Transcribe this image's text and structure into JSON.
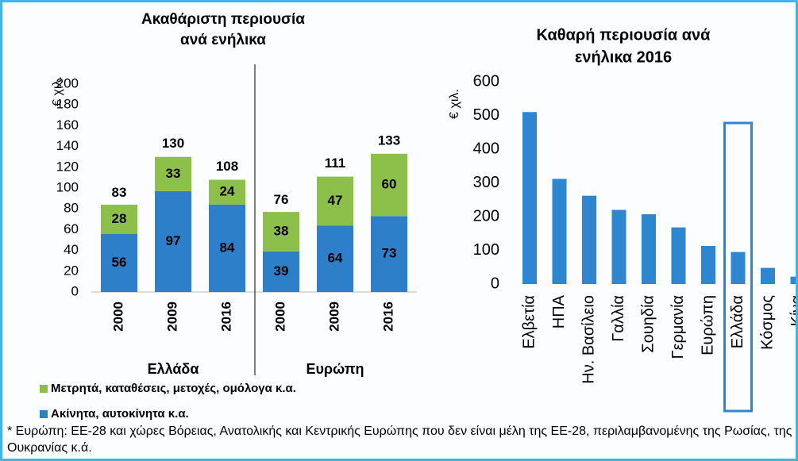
{
  "chart_data": [
    {
      "type": "stacked_bar",
      "title": [
        "Ακαθάριστη περιουσία",
        "ανά ενήλικα"
      ],
      "ylabel": "€ χιλ.",
      "categories": [
        "2000",
        "2009",
        "2016",
        "2000",
        "2009",
        "2016"
      ],
      "group_labels": [
        "Ελλάδα",
        "Ευρώπη"
      ],
      "series": [
        {
          "name": "Ακίνητα, αυτοκίνητα κ.α.",
          "color": "#2e7fca",
          "values": [
            56,
            97,
            84,
            39,
            64,
            73
          ]
        },
        {
          "name": "Μετρητά, καταθέσεις, μετοχές, ομόλογα κ.α.",
          "color": "#8dc04b",
          "values": [
            28,
            33,
            24,
            38,
            47,
            60
          ]
        }
      ],
      "totals": [
        83,
        130,
        108,
        76,
        111,
        133
      ],
      "ylim": [
        0,
        200
      ],
      "yticks": [
        0,
        20,
        40,
        60,
        80,
        100,
        120,
        140,
        160,
        180,
        200
      ]
    },
    {
      "type": "bar",
      "title": [
        "Καθαρή περιουσία ανά",
        "ενήλικα 2016"
      ],
      "ylabel": "€ χιλ.",
      "categories": [
        "Ελβετία",
        "ΗΠΑ",
        "Ην. Βασίλειο",
        "Γαλλία",
        "Σουηδία",
        "Γερμανία",
        "Ευρώπη",
        "Ελλάδα",
        "Κόσμος",
        "Κίνα"
      ],
      "values": [
        510,
        312,
        262,
        220,
        207,
        168,
        113,
        95,
        48,
        22
      ],
      "color": "#2e86d0",
      "highlight": "Ελλάδα",
      "ylim": [
        0,
        600
      ],
      "yticks": [
        0,
        100,
        200,
        300,
        400,
        500,
        600
      ]
    }
  ],
  "footnote": "* Ευρώπη: ΕΕ-28 και χώρες Βόρειας, Ανατολικής και Κεντρικής Ευρώπης που δεν είναι μέλη της ΕΕ-28, περιλαμβανομένης της Ρωσίας, της Ουκρανίας κ.ά."
}
